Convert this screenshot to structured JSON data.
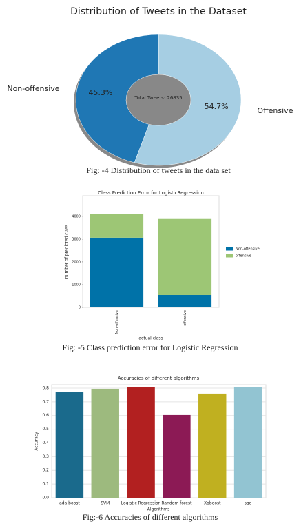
{
  "chart_data": [
    {
      "type": "pie",
      "title": "Distribution of Tweets in the Dataset",
      "categories": [
        "Non-offensive",
        "Offensive"
      ],
      "values": [
        45.3,
        54.7
      ],
      "value_labels": [
        "45.3%",
        "54.7%"
      ],
      "colors": [
        "#1f77b4",
        "#a6cee3"
      ],
      "center_text": "Total Tweets: 26835",
      "caption": "Fig: -4 Distribution of tweets in the data set"
    },
    {
      "type": "stacked_bar",
      "title": "Class Prediction Error for LogisticRegression",
      "categories": [
        "Non-offensive",
        "offensive"
      ],
      "series": [
        {
          "name": "Non-offensive",
          "color": "#0072a8",
          "values": [
            3060,
            545
          ]
        },
        {
          "name": "offensive",
          "color": "#9dc675",
          "values": [
            1030,
            3365
          ]
        }
      ],
      "ylim": [
        0,
        4900
      ],
      "yticks": [
        0,
        1000,
        2000,
        3000,
        4000
      ],
      "xlabel": "actual class",
      "ylabel": "number of predicted class",
      "legend": "right",
      "caption": "Fig: -5 Class prediction error for Logistic Regression"
    },
    {
      "type": "bar",
      "title": "Accuracies of different algorithms",
      "categories": [
        "ada boost",
        "SVM",
        "Logistic Regression",
        "Random forest",
        "Xgboost",
        "sgd"
      ],
      "values": [
        0.77,
        0.795,
        0.805,
        0.604,
        0.76,
        0.805
      ],
      "colors": [
        "#1a6a8c",
        "#9dba7e",
        "#b22020",
        "#8c1a55",
        "#c0b020",
        "#92c4d2"
      ],
      "ylim": [
        0,
        0.825
      ],
      "yticks": [
        {
          "value": 0,
          "label": "0.0"
        },
        0.1,
        0.2,
        0.3,
        0.4,
        0.5,
        0.6,
        0.7,
        0.8
      ],
      "xlabel": "Algorithms",
      "ylabel": "Accuracy",
      "grid": true,
      "caption": "Fig:-6 Accuracies of different algorithms"
    }
  ]
}
